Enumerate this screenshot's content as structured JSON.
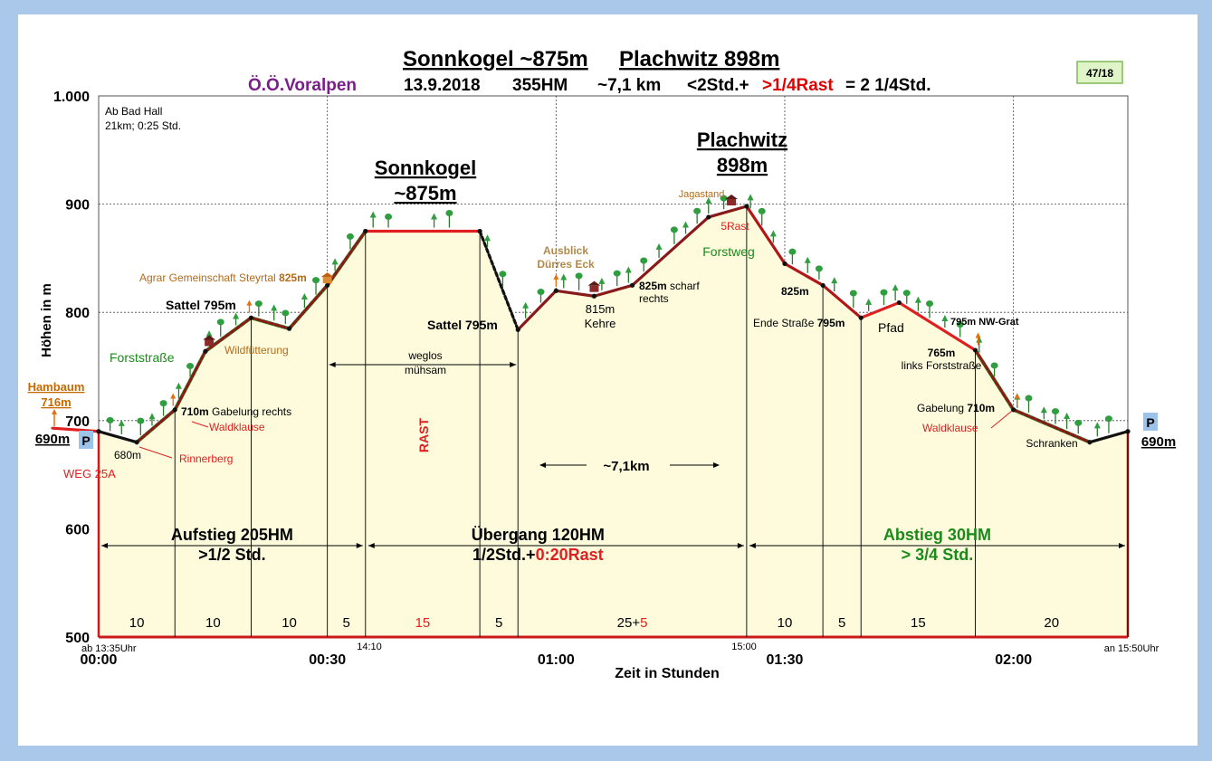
{
  "chart_data": {
    "type": "area",
    "title": {
      "part1": "Sonnkogel ~875m",
      "part2": "Plachwitz 898m"
    },
    "subtitle": {
      "region": "Ö.Ö.Voralpen",
      "date": "13.9.2018",
      "hm": "355HM",
      "dist": "~7,1 km",
      "time_a": "<2Std.+",
      "time_b": ">1/4Rast",
      "time_c": "= 2 1/4Std."
    },
    "badge": "47/18",
    "xlabel": "Zeit in Stunden",
    "ylabel": "Höhen in m",
    "xlim": [
      0,
      137
    ],
    "ylim": [
      500,
      1000
    ],
    "y_ticks": [
      "500",
      "600",
      "700",
      "800",
      "900",
      "1.000"
    ],
    "x_ticks": [
      {
        "m": 0,
        "label": "00:00"
      },
      {
        "m": 30,
        "label": "00:30"
      },
      {
        "m": 60,
        "label": "01:00"
      },
      {
        "m": 90,
        "label": "01:30"
      },
      {
        "m": 120,
        "label": "02:00"
      }
    ],
    "profile": [
      {
        "m": -6,
        "e": 693
      },
      {
        "m": 0,
        "e": 690
      },
      {
        "m": 5,
        "e": 680
      },
      {
        "m": 10,
        "e": 710
      },
      {
        "m": 14,
        "e": 764
      },
      {
        "m": 20,
        "e": 795
      },
      {
        "m": 25,
        "e": 785
      },
      {
        "m": 30,
        "e": 825
      },
      {
        "m": 35,
        "e": 875
      },
      {
        "m": 50,
        "e": 875
      },
      {
        "m": 55,
        "e": 784
      },
      {
        "m": 60,
        "e": 820
      },
      {
        "m": 65,
        "e": 815
      },
      {
        "m": 70,
        "e": 825
      },
      {
        "m": 80,
        "e": 888
      },
      {
        "m": 85,
        "e": 898
      },
      {
        "m": 90,
        "e": 845
      },
      {
        "m": 95,
        "e": 825
      },
      {
        "m": 100,
        "e": 795
      },
      {
        "m": 105,
        "e": 809
      },
      {
        "m": 115,
        "e": 765
      },
      {
        "m": 120,
        "e": 710
      },
      {
        "m": 130,
        "e": 680
      },
      {
        "m": 135,
        "e": 690
      }
    ],
    "segment_markers": [
      {
        "m": 10,
        "label": "10"
      },
      {
        "m": 20,
        "label": "10"
      },
      {
        "m": 30,
        "label": "10"
      },
      {
        "m": 35,
        "label": "5"
      },
      {
        "m": 50,
        "label": "15"
      },
      {
        "m": 55,
        "label": "5"
      },
      {
        "m": 85,
        "label": "25+5"
      },
      {
        "m": 95,
        "label": "10"
      },
      {
        "m": 100,
        "label": "5"
      },
      {
        "m": 115,
        "label": "15"
      },
      {
        "m": 135,
        "label": "20"
      }
    ],
    "phases": [
      {
        "label1": "Aufstieg 205HM",
        "label2": ">1/2 Std."
      },
      {
        "label1": "Übergang 120HM",
        "label2a": "1/2Std.+",
        "label2b": "0:20Rast"
      },
      {
        "label1": "Abstieg 30HM",
        "label2": "> 3/4 Std."
      }
    ],
    "annotations": {
      "start_info1": "Ab Bad Hall",
      "start_info2": "21km; 0:25 Std.",
      "hambaum1": "Hambaum",
      "hambaum2": "716m",
      "start_elev": "690m",
      "end_elev": "690m",
      "parking": "P",
      "weg": "WEG 25A",
      "e680": "680m",
      "rinnerberg": "Rinnerberg",
      "e710_bold": "710m",
      "e710_rest": "Gabelung rechts",
      "waldklause_l": "Waldklause",
      "forststrasse": "Forststraße",
      "wildfuetterung": "Wildfütterung",
      "sattel_l": "Sattel 795m",
      "agrar": "Agrar Gemeinschaft Steyrtal",
      "agrar_elev": "825m",
      "sonnkogel1": "Sonnkogel",
      "sonnkogel2": "~875m",
      "weglos1": "weglos",
      "weglos2": "mühsam",
      "rast": "RAST",
      "sattel_r": "Sattel 795m",
      "ausblick1": "Ausblick",
      "ausblick2": "Dürres Eck",
      "e815": "815m",
      "kehre": "Kehre",
      "e825_bold": "825m",
      "scharf": "scharf",
      "rechts": "rechts",
      "distance": "~7,1km",
      "jagastand": "Jagastand",
      "rast5": "5Rast",
      "forstweg": "Forstweg",
      "plachwitz1": "Plachwitz",
      "plachwitz2": "898m",
      "e825_desc": "825m",
      "ende_strasse": "Ende Straße",
      "e795": "795m",
      "pfad": "Pfad",
      "nwgrat": "795m NW-Grat",
      "e765": "765m",
      "links_forst": "links Forststraße",
      "gabelung_r": "Gabelung",
      "gabelung_r_elev": "710m",
      "waldklause_r": "Waldklause",
      "schranken": "Schranken",
      "t_start": "ab 13:35Uhr",
      "t_1410": "14:10",
      "t_1500": "15:00",
      "t_end": "an 15:50Uhr"
    }
  }
}
